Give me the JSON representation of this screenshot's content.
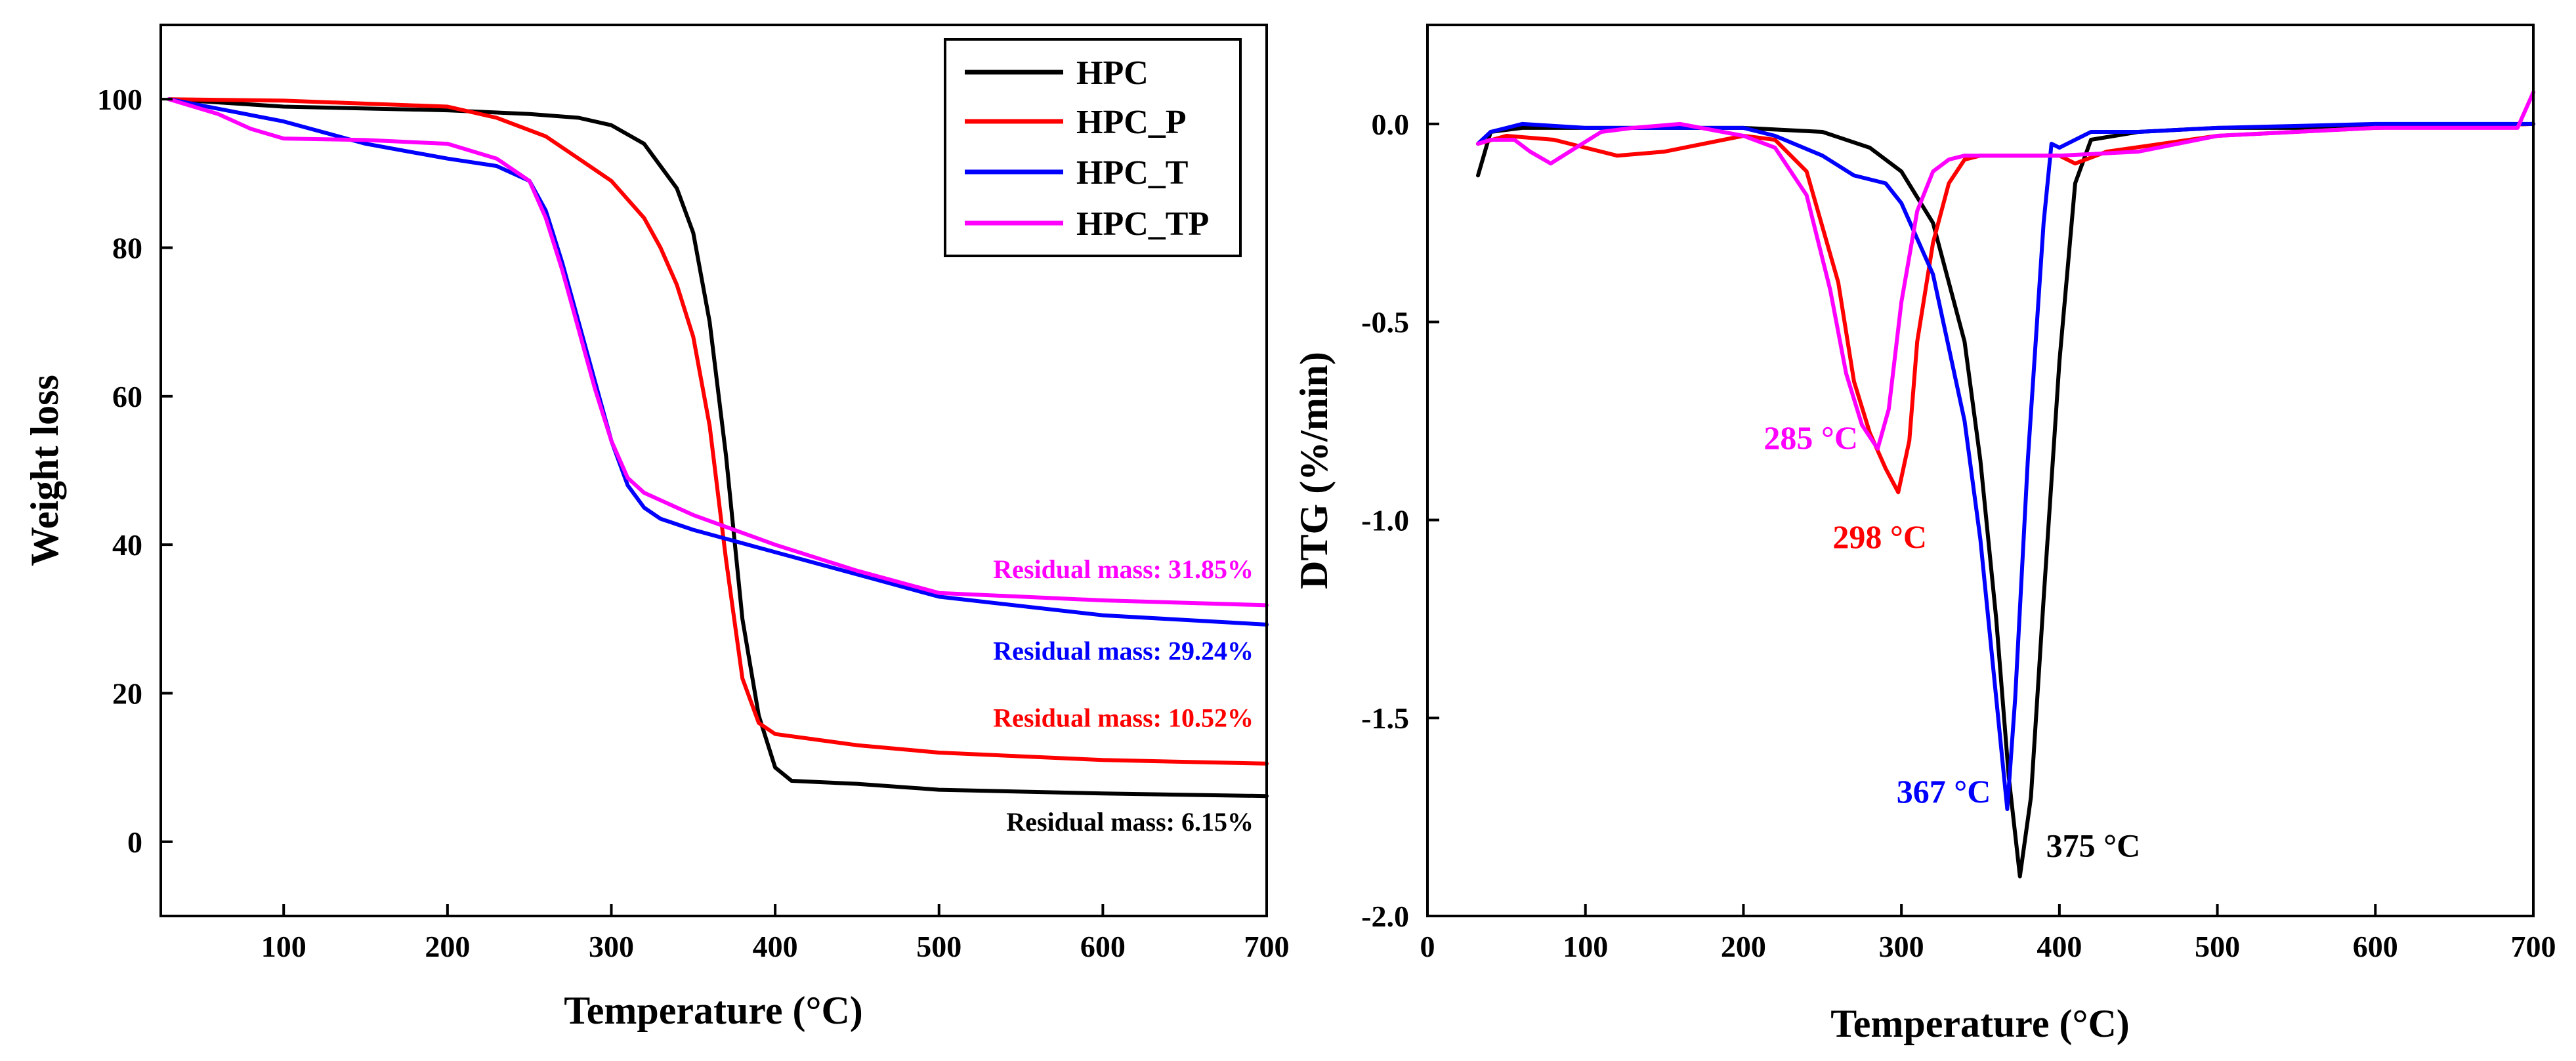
{
  "chart_data": [
    {
      "type": "line",
      "id": "tga",
      "title": "",
      "xlabel": "Temperature (°C)",
      "ylabel": "Weight loss",
      "xlim": [
        25,
        700
      ],
      "ylim": [
        -10,
        110
      ],
      "xticks": [
        100,
        200,
        300,
        400,
        500,
        600,
        700
      ],
      "yticks": [
        0,
        20,
        40,
        60,
        80,
        100
      ],
      "xtick_labels": [
        "100",
        "200",
        "300",
        "400",
        "500",
        "600",
        "700"
      ],
      "ytick_labels": [
        "0",
        "20",
        "40",
        "60",
        "80",
        "100"
      ],
      "grid": false,
      "legend": {
        "position": "top-right",
        "entries": [
          "HPC",
          "HPC_P",
          "HPC_T",
          "HPC_TP"
        ]
      },
      "series": [
        {
          "name": "HPC",
          "color": "#000000",
          "x": [
            30,
            100,
            200,
            250,
            280,
            300,
            320,
            340,
            350,
            360,
            370,
            380,
            390,
            400,
            410,
            450,
            500,
            600,
            700
          ],
          "y": [
            100,
            99,
            98.5,
            98,
            97.5,
            96.5,
            94,
            88,
            82,
            70,
            52,
            30,
            17,
            10,
            8.2,
            7.8,
            7,
            6.5,
            6.15
          ]
        },
        {
          "name": "HPC_P",
          "color": "#ff0000",
          "x": [
            30,
            100,
            200,
            230,
            260,
            280,
            300,
            320,
            330,
            340,
            350,
            360,
            370,
            380,
            390,
            400,
            450,
            500,
            600,
            700
          ],
          "y": [
            100,
            99.8,
            99,
            97.5,
            95,
            92,
            89,
            84,
            80,
            75,
            68,
            56,
            38,
            22,
            16,
            14.5,
            13,
            12,
            11,
            10.52
          ]
        },
        {
          "name": "HPC_T",
          "color": "#0000ff",
          "x": [
            30,
            100,
            150,
            200,
            230,
            250,
            260,
            270,
            280,
            290,
            300,
            310,
            320,
            330,
            350,
            400,
            450,
            500,
            600,
            700
          ],
          "y": [
            100,
            97,
            94,
            92,
            91,
            89,
            85,
            78,
            70,
            62,
            54,
            48,
            45,
            43.5,
            42,
            39,
            36,
            33,
            30.5,
            29.24
          ]
        },
        {
          "name": "HPC_TP",
          "color": "#ff00ff",
          "x": [
            30,
            60,
            80,
            100,
            150,
            200,
            230,
            250,
            260,
            270,
            280,
            290,
            300,
            310,
            320,
            350,
            400,
            450,
            500,
            600,
            700
          ],
          "y": [
            100,
            98,
            96,
            94.7,
            94.5,
            94,
            92,
            89,
            84,
            77,
            69,
            61,
            54,
            49,
            47,
            44,
            40,
            36.5,
            33.5,
            32.5,
            31.85
          ]
        }
      ],
      "annotations": [
        {
          "text": "Residual mass: 31.85%",
          "x": 700,
          "y": 35.5,
          "color": "#ff00ff"
        },
        {
          "text": "Residual mass: 29.24%",
          "x": 700,
          "y": 24.5,
          "color": "#0000ff"
        },
        {
          "text": "Residual mass: 10.52%",
          "x": 700,
          "y": 15.5,
          "color": "#ff0000"
        },
        {
          "text": "Residual mass: 6.15%",
          "x": 700,
          "y": 1.5,
          "color": "#000000"
        }
      ]
    },
    {
      "type": "line",
      "id": "dtg",
      "title": "",
      "xlabel": "Temperature (°C)",
      "ylabel": "DTG (%/min)",
      "xlim": [
        0,
        700
      ],
      "ylim": [
        -2.0,
        0.25
      ],
      "xticks": [
        0,
        100,
        200,
        300,
        400,
        500,
        600,
        700
      ],
      "yticks": [
        0.0,
        -0.5,
        -1.0,
        -1.5,
        -2.0
      ],
      "xtick_labels": [
        "0",
        "100",
        "200",
        "300",
        "400",
        "500",
        "600",
        "700"
      ],
      "ytick_labels": [
        "0.0",
        "-0.5",
        "-1.0",
        "-1.5",
        "-2.0"
      ],
      "grid": false,
      "series": [
        {
          "name": "HPC",
          "color": "#000000",
          "x": [
            32,
            40,
            60,
            100,
            200,
            250,
            280,
            300,
            320,
            340,
            350,
            360,
            368,
            375,
            382,
            390,
            400,
            410,
            420,
            450,
            500,
            600,
            700
          ],
          "y": [
            -0.13,
            -0.02,
            -0.01,
            -0.01,
            -0.01,
            -0.02,
            -0.06,
            -0.12,
            -0.25,
            -0.55,
            -0.85,
            -1.25,
            -1.65,
            -1.9,
            -1.7,
            -1.2,
            -0.6,
            -0.15,
            -0.04,
            -0.02,
            -0.01,
            -0.01,
            0.0
          ]
        },
        {
          "name": "HPC_P",
          "color": "#ff0000",
          "x": [
            32,
            50,
            80,
            100,
            120,
            150,
            200,
            220,
            240,
            260,
            270,
            280,
            290,
            298,
            305,
            310,
            320,
            330,
            340,
            350,
            400,
            410,
            430,
            500,
            600,
            700
          ],
          "y": [
            -0.05,
            -0.03,
            -0.04,
            -0.06,
            -0.08,
            -0.07,
            -0.03,
            -0.04,
            -0.12,
            -0.4,
            -0.65,
            -0.78,
            -0.87,
            -0.93,
            -0.8,
            -0.55,
            -0.3,
            -0.15,
            -0.09,
            -0.08,
            -0.08,
            -0.1,
            -0.07,
            -0.03,
            -0.01,
            0.0
          ]
        },
        {
          "name": "HPC_T",
          "color": "#0000ff",
          "x": [
            32,
            40,
            60,
            100,
            200,
            220,
            250,
            270,
            290,
            300,
            320,
            340,
            350,
            360,
            367,
            372,
            380,
            390,
            395,
            400,
            410,
            420,
            450,
            500,
            600,
            700
          ],
          "y": [
            -0.05,
            -0.02,
            0.0,
            -0.01,
            -0.01,
            -0.03,
            -0.08,
            -0.13,
            -0.15,
            -0.2,
            -0.38,
            -0.75,
            -1.05,
            -1.45,
            -1.73,
            -1.45,
            -0.85,
            -0.25,
            -0.05,
            -0.06,
            -0.04,
            -0.02,
            -0.02,
            -0.01,
            0.0,
            0.0
          ]
        },
        {
          "name": "HPC_TP",
          "color": "#ff00ff",
          "x": [
            32,
            40,
            55,
            65,
            78,
            90,
            110,
            130,
            160,
            200,
            220,
            240,
            255,
            265,
            275,
            285,
            292,
            300,
            310,
            320,
            330,
            340,
            360,
            400,
            450,
            500,
            600,
            690,
            700
          ],
          "y": [
            -0.05,
            -0.04,
            -0.04,
            -0.07,
            -0.1,
            -0.07,
            -0.02,
            -0.01,
            0.0,
            -0.03,
            -0.06,
            -0.18,
            -0.42,
            -0.63,
            -0.76,
            -0.82,
            -0.72,
            -0.45,
            -0.22,
            -0.12,
            -0.09,
            -0.08,
            -0.08,
            -0.08,
            -0.07,
            -0.03,
            -0.01,
            -0.01,
            0.08
          ]
        }
      ],
      "annotations": [
        {
          "text": "285 °C",
          "x": 285,
          "y": -0.82,
          "color": "#ff00ff"
        },
        {
          "text": "298 °C",
          "x": 298,
          "y": -0.93,
          "color": "#ff0000"
        },
        {
          "text": "367 °C",
          "x": 367,
          "y": -1.73,
          "color": "#0000ff"
        },
        {
          "text": "375 °C",
          "x": 375,
          "y": -1.9,
          "color": "#000000"
        }
      ]
    }
  ]
}
